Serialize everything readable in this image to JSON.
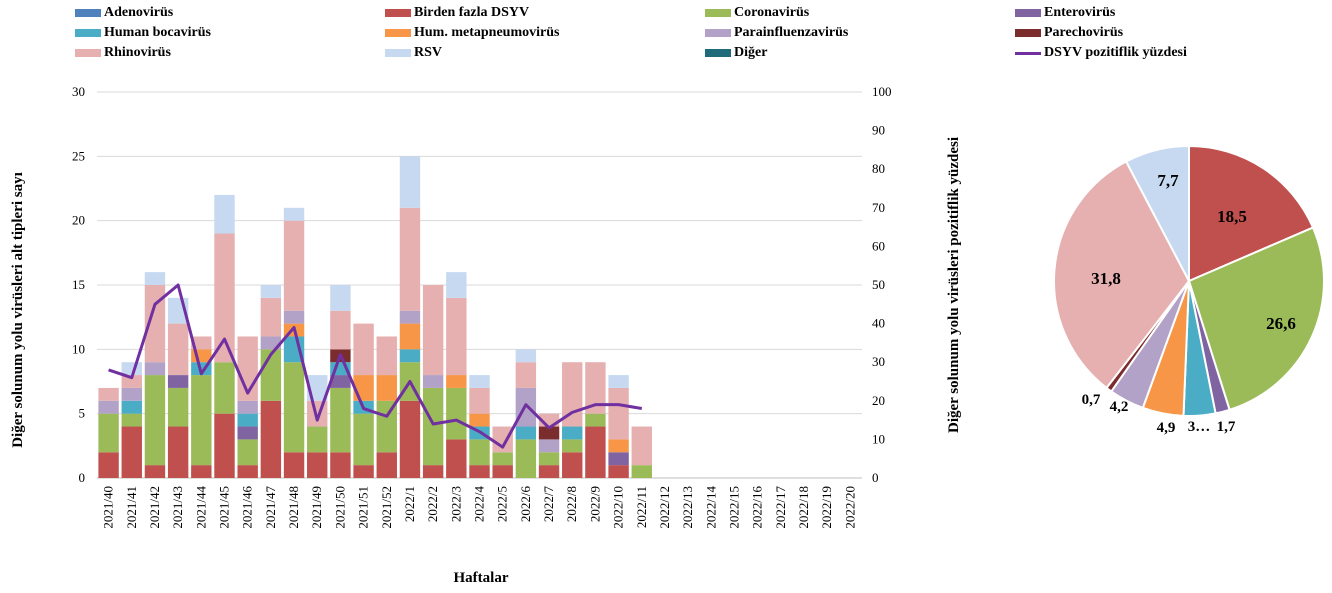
{
  "chart_data": [
    {
      "type": "bar",
      "stacked": true,
      "xlabel": "Haftalar",
      "ylabel_left": "Diğer solunum yolu virüsleri alt tipleri sayı",
      "ylabel_right": "Diğer solunum yolu virüsleri pozitiflik yüzdesi",
      "ylim_left": [
        0,
        30
      ],
      "yticks_left": [
        0,
        5,
        10,
        15,
        20,
        25,
        30
      ],
      "ylim_right": [
        0,
        100
      ],
      "yticks_right": [
        0,
        10,
        20,
        30,
        40,
        50,
        60,
        70,
        80,
        90,
        100
      ],
      "grid": true,
      "legend_position": "top",
      "categories": [
        "2021/40",
        "2021/41",
        "2021/42",
        "2021/43",
        "2021/44",
        "2021/45",
        "2021/46",
        "2021/47",
        "2021/48",
        "2021/49",
        "2021/50",
        "2021/51",
        "2021/52",
        "2022/1",
        "2022/2",
        "2022/3",
        "2022/4",
        "2022/5",
        "2022/6",
        "2022/7",
        "2022/8",
        "2022/9",
        "2022/10",
        "2022/11",
        "2022/12",
        "2022/13",
        "2022/14",
        "2022/15",
        "2022/16",
        "2022/17",
        "2022/18",
        "2022/19",
        "2022/20"
      ],
      "series": [
        {
          "name": "Birden fazla DSYV",
          "color": "#c0504d",
          "values": [
            2,
            4,
            1,
            4,
            1,
            5,
            1,
            6,
            2,
            2,
            2,
            1,
            2,
            6,
            1,
            3,
            1,
            1,
            0,
            1,
            2,
            4,
            1,
            0,
            0,
            0,
            0,
            0,
            0,
            0,
            0,
            0,
            0
          ]
        },
        {
          "name": "Coronavirüs",
          "color": "#9bbb59",
          "values": [
            3,
            1,
            7,
            3,
            7,
            4,
            2,
            4,
            7,
            2,
            5,
            4,
            4,
            3,
            6,
            4,
            2,
            1,
            3,
            1,
            1,
            1,
            0,
            1,
            0,
            0,
            0,
            0,
            0,
            0,
            0,
            0,
            0
          ]
        },
        {
          "name": "Enterovirüs",
          "color": "#8064a2",
          "values": [
            0,
            0,
            0,
            1,
            0,
            0,
            1,
            0,
            0,
            0,
            1,
            0,
            0,
            0,
            0,
            0,
            0,
            0,
            0,
            0,
            0,
            0,
            1,
            0,
            0,
            0,
            0,
            0,
            0,
            0,
            0,
            0,
            0
          ]
        },
        {
          "name": "Human bocavirüs",
          "color": "#4bacc6",
          "values": [
            0,
            1,
            0,
            0,
            1,
            0,
            1,
            0,
            2,
            0,
            1,
            1,
            0,
            1,
            0,
            0,
            1,
            0,
            1,
            0,
            1,
            0,
            0,
            0,
            0,
            0,
            0,
            0,
            0,
            0,
            0,
            0,
            0
          ]
        },
        {
          "name": "Hum. metapneumovirüs",
          "color": "#f79646",
          "values": [
            0,
            0,
            0,
            0,
            1,
            0,
            0,
            0,
            1,
            0,
            0,
            2,
            2,
            2,
            0,
            1,
            1,
            0,
            0,
            0,
            0,
            0,
            1,
            0,
            0,
            0,
            0,
            0,
            0,
            0,
            0,
            0,
            0
          ]
        },
        {
          "name": "Parainfluenzavirüs",
          "color": "#b3a2c7",
          "values": [
            1,
            1,
            1,
            0,
            0,
            0,
            1,
            1,
            1,
            0,
            0,
            0,
            0,
            1,
            1,
            0,
            0,
            0,
            3,
            1,
            0,
            0,
            0,
            0,
            0,
            0,
            0,
            0,
            0,
            0,
            0,
            0,
            0
          ]
        },
        {
          "name": "Parechovirüs",
          "color": "#7b2c2c",
          "values": [
            0,
            0,
            0,
            0,
            0,
            0,
            0,
            0,
            0,
            0,
            1,
            0,
            0,
            0,
            0,
            0,
            0,
            0,
            0,
            1,
            0,
            0,
            0,
            0,
            0,
            0,
            0,
            0,
            0,
            0,
            0,
            0,
            0
          ]
        },
        {
          "name": "Rhinovirüs",
          "color": "#e6b0b0",
          "values": [
            1,
            1,
            6,
            4,
            1,
            10,
            5,
            3,
            7,
            2,
            3,
            4,
            3,
            8,
            7,
            6,
            2,
            2,
            2,
            1,
            5,
            4,
            4,
            3,
            0,
            0,
            0,
            0,
            0,
            0,
            0,
            0,
            0
          ]
        },
        {
          "name": "RSV",
          "color": "#c6d9f1",
          "values": [
            0,
            1,
            1,
            2,
            0,
            3,
            0,
            1,
            1,
            2,
            2,
            0,
            0,
            4,
            0,
            2,
            1,
            0,
            1,
            0,
            0,
            0,
            1,
            0,
            0,
            0,
            0,
            0,
            0,
            0,
            0,
            0,
            0
          ]
        }
      ],
      "line": {
        "name": "DSYV pozitiflik yüzdesi",
        "color": "#7030a0",
        "axis": "right",
        "values": [
          28,
          26,
          45,
          50,
          27,
          36,
          22,
          32,
          39,
          15,
          32,
          18,
          16,
          25,
          14,
          15,
          12,
          8,
          19,
          13,
          17,
          19,
          19,
          18,
          null,
          null,
          null,
          null,
          null,
          null,
          null,
          null,
          null
        ]
      }
    },
    {
      "type": "pie",
      "slices": [
        {
          "label": "18,5",
          "value": 18.5,
          "color": "#c0504d"
        },
        {
          "label": "26,6",
          "value": 26.6,
          "color": "#9bbb59"
        },
        {
          "label": "1,7",
          "value": 1.7,
          "color": "#8064a2"
        },
        {
          "label": "3…",
          "value": 3.8,
          "color": "#4bacc6"
        },
        {
          "label": "4,9",
          "value": 4.9,
          "color": "#f79646"
        },
        {
          "label": "4,2",
          "value": 4.2,
          "color": "#b3a2c7"
        },
        {
          "label": "0,7",
          "value": 0.7,
          "color": "#7b2c2c"
        },
        {
          "label": "31,8",
          "value": 31.8,
          "color": "#e6b0b0"
        },
        {
          "label": "7,7",
          "value": 7.7,
          "color": "#c6d9f1"
        }
      ]
    }
  ],
  "legend": [
    {
      "label": "Adenovirüs",
      "color": "#4f81bd",
      "kind": "box"
    },
    {
      "label": "Birden fazla DSYV",
      "color": "#c0504d",
      "kind": "box"
    },
    {
      "label": "Coronavirüs",
      "color": "#9bbb59",
      "kind": "box"
    },
    {
      "label": "Enterovirüs",
      "color": "#8064a2",
      "kind": "box"
    },
    {
      "label": "Human bocavirüs",
      "color": "#4bacc6",
      "kind": "box"
    },
    {
      "label": "Hum. metapneumovirüs",
      "color": "#f79646",
      "kind": "box"
    },
    {
      "label": "Parainfluenzavirüs",
      "color": "#b3a2c7",
      "kind": "box"
    },
    {
      "label": "Parechovirüs",
      "color": "#7b2c2c",
      "kind": "box"
    },
    {
      "label": "Rhinovirüs",
      "color": "#e6b0b0",
      "kind": "box"
    },
    {
      "label": "RSV",
      "color": "#c6d9f1",
      "kind": "box"
    },
    {
      "label": "Diğer",
      "color": "#1f6b7a",
      "kind": "box"
    },
    {
      "label": "DSYV pozitiflik yüzdesi",
      "color": "#7030a0",
      "kind": "line"
    }
  ]
}
